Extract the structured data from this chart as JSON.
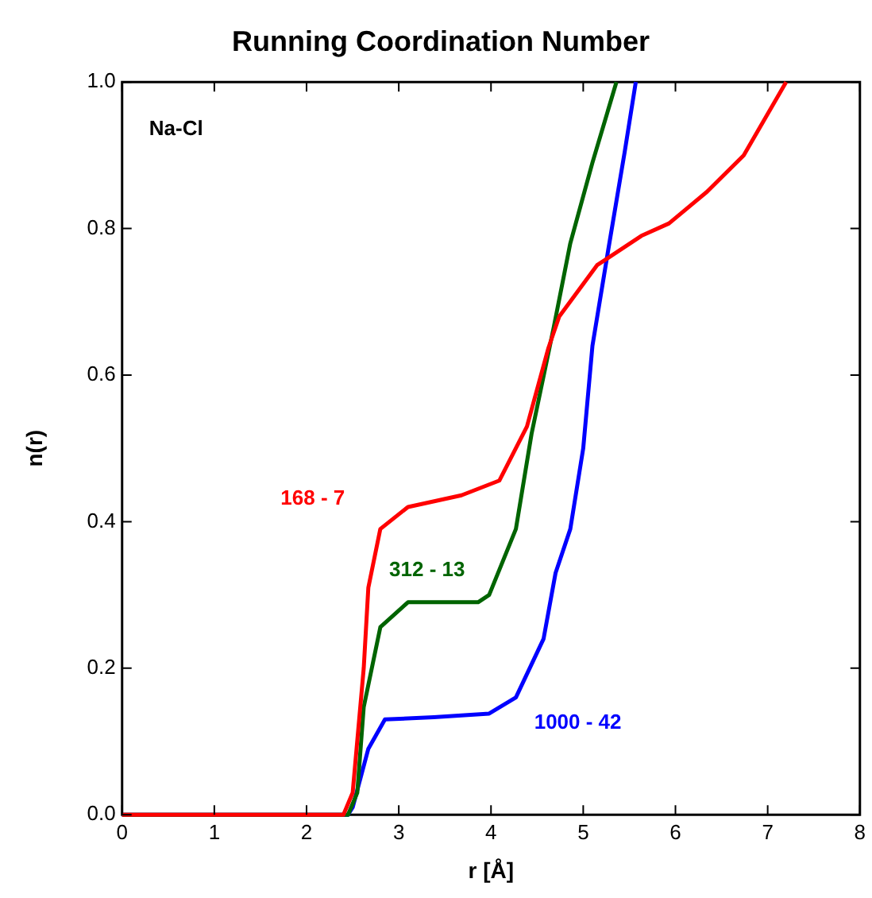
{
  "chart_data": {
    "type": "line",
    "title": "Running Coordination Number",
    "xlabel": "r [Å]",
    "ylabel": "n(r)",
    "xlim": [
      0,
      8
    ],
    "xticks": [
      0,
      1,
      2,
      3,
      4,
      5,
      6,
      7,
      8
    ],
    "ylim": [
      0,
      1
    ],
    "yticks": [
      {
        "value": 0,
        "label": "0.0"
      },
      {
        "value": 0.2,
        "label": "0.2"
      },
      {
        "value": 0.4,
        "label": "0.4"
      },
      {
        "value": 0.6,
        "label": "0.6"
      },
      {
        "value": 0.8,
        "label": "0.8"
      },
      {
        "value": 1,
        "label": "1.0"
      }
    ],
    "grid": false,
    "legend": false,
    "marker": "none",
    "line_style": "solid",
    "annotations": [
      "Na-Cl"
    ],
    "series": [
      {
        "name": "168 - 7",
        "color": "#ff0000",
        "x": [
          0,
          2.4,
          2.5,
          2.62,
          2.67,
          2.8,
          3.1,
          3.68,
          4.09,
          4.39,
          4.62,
          4.74,
          5.15,
          5.63,
          5.93,
          6.34,
          6.74,
          7.2
        ],
        "values": [
          0,
          0,
          0.03,
          0.2,
          0.31,
          0.39,
          0.42,
          0.436,
          0.456,
          0.53,
          0.636,
          0.68,
          0.75,
          0.79,
          0.807,
          0.85,
          0.9,
          1.0
        ]
      },
      {
        "name": "312 - 13",
        "color": "#006400",
        "x": [
          0,
          2.45,
          2.55,
          2.62,
          2.8,
          3.1,
          3.86,
          3.98,
          4.27,
          4.44,
          4.68,
          4.86,
          5.1,
          5.36
        ],
        "values": [
          0,
          0,
          0.03,
          0.147,
          0.256,
          0.29,
          0.29,
          0.3,
          0.39,
          0.52,
          0.665,
          0.78,
          0.89,
          1.0
        ]
      },
      {
        "name": "1000 - 42",
        "color": "#0000ff",
        "x": [
          0,
          2.45,
          2.5,
          2.67,
          2.85,
          3.38,
          3.98,
          4.27,
          4.57,
          4.7,
          4.86,
          5.0,
          5.1,
          5.27,
          5.45,
          5.57
        ],
        "values": [
          0,
          0,
          0.01,
          0.09,
          0.13,
          0.133,
          0.138,
          0.16,
          0.24,
          0.33,
          0.39,
          0.5,
          0.64,
          0.77,
          0.905,
          1.0
        ]
      }
    ]
  }
}
